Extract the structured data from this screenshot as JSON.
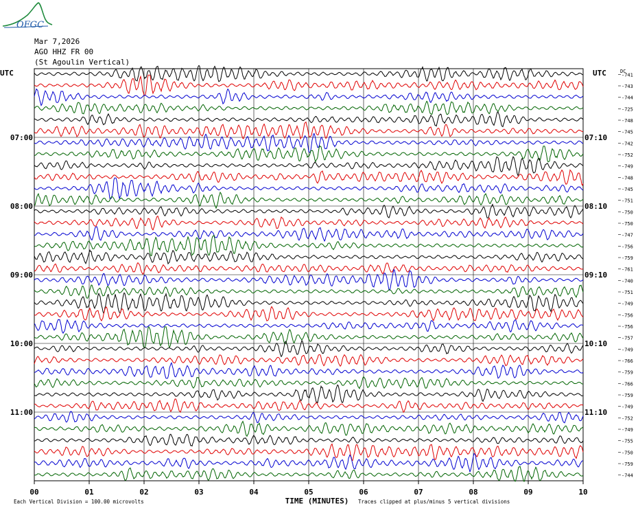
{
  "header": {
    "logo_text": "OFGC",
    "date": "Mar 7,2026",
    "station": "AGO HHZ FR 00",
    "station_name": "(St Agoulin Vertical)"
  },
  "chart_data": {
    "type": "line",
    "title": "Mar 7,2026",
    "subtitle": "AGO HHZ FR 00 (St Agoulin Vertical)",
    "xlabel": "TIME (MINUTES)",
    "xlim": [
      0,
      10
    ],
    "x_ticks": [
      "00",
      "01",
      "02",
      "03",
      "04",
      "05",
      "06",
      "07",
      "08",
      "09",
      "10"
    ],
    "left_axis_label": "UTC",
    "right_axis_label": "UTC",
    "dc_label": "DC",
    "left_time_labels": [
      {
        "row": 6,
        "label": "07:00"
      },
      {
        "row": 12,
        "label": "08:00"
      },
      {
        "row": 18,
        "label": "09:00"
      },
      {
        "row": 24,
        "label": "10:00"
      },
      {
        "row": 30,
        "label": "11:00"
      }
    ],
    "right_time_labels": [
      {
        "row": 6,
        "label": "07:10"
      },
      {
        "row": 12,
        "label": "08:10"
      },
      {
        "row": 18,
        "label": "09:10"
      },
      {
        "row": 24,
        "label": "10:10"
      },
      {
        "row": 30,
        "label": "11:10"
      }
    ],
    "dc_offsets": [
      "-741",
      "-743",
      "-744",
      "-725",
      "-748",
      "-745",
      "-742",
      "-752",
      "-749",
      "-748",
      "-745",
      "-751",
      "-750",
      "-750",
      "-747",
      "-756",
      "-759",
      "-761",
      "-740",
      "-751",
      "-749",
      "-756",
      "-756",
      "-757",
      "-749",
      "-766",
      "-759",
      "-766",
      "-759",
      "-749",
      "-752",
      "-749",
      "-755",
      "-750",
      "-759",
      "-744"
    ],
    "trace_colors": [
      "#000000",
      "#e00000",
      "#0000d0",
      "#006400"
    ],
    "trace_rows": 36,
    "scale_note": "Each Vertical Division = 100.00 microvolts",
    "clip_note": "Traces clipped at plus/minus 5 vertical divisions",
    "grid": true
  }
}
